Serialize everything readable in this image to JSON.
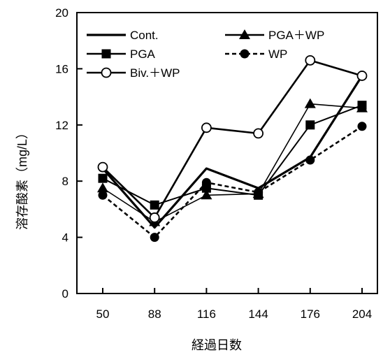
{
  "chart_data": {
    "type": "line",
    "title": "",
    "xlabel": "経過日数",
    "ylabel": "溶存酸素（mg/L）",
    "categories": [
      "50",
      "88",
      "116",
      "144",
      "176",
      "204"
    ],
    "ylim": [
      0,
      20
    ],
    "yticks": [
      "0",
      "4",
      "8",
      "12",
      "16",
      "20"
    ],
    "grid": false,
    "legend_position": "top-left",
    "series": [
      {
        "name": "Cont.",
        "values": [
          8.9,
          4.7,
          8.9,
          7.5,
          9.7,
          15.5
        ],
        "line": "solid",
        "marker": "none"
      },
      {
        "name": "PGA＋WP",
        "values": [
          7.5,
          5.1,
          7.0,
          7.1,
          13.5,
          13.2
        ],
        "line": "solid",
        "marker": "triangle"
      },
      {
        "name": "PGA",
        "values": [
          8.2,
          6.3,
          7.5,
          7.0,
          12.0,
          13.4
        ],
        "line": "solid",
        "marker": "square"
      },
      {
        "name": "WP",
        "values": [
          7.0,
          4.0,
          7.9,
          7.2,
          9.5,
          11.9
        ],
        "line": "dashed",
        "marker": "circle"
      },
      {
        "name": "Biv.＋WP",
        "values": [
          9.0,
          5.4,
          11.8,
          11.4,
          16.6,
          15.5
        ],
        "line": "solid",
        "marker": "open-circle"
      }
    ]
  }
}
